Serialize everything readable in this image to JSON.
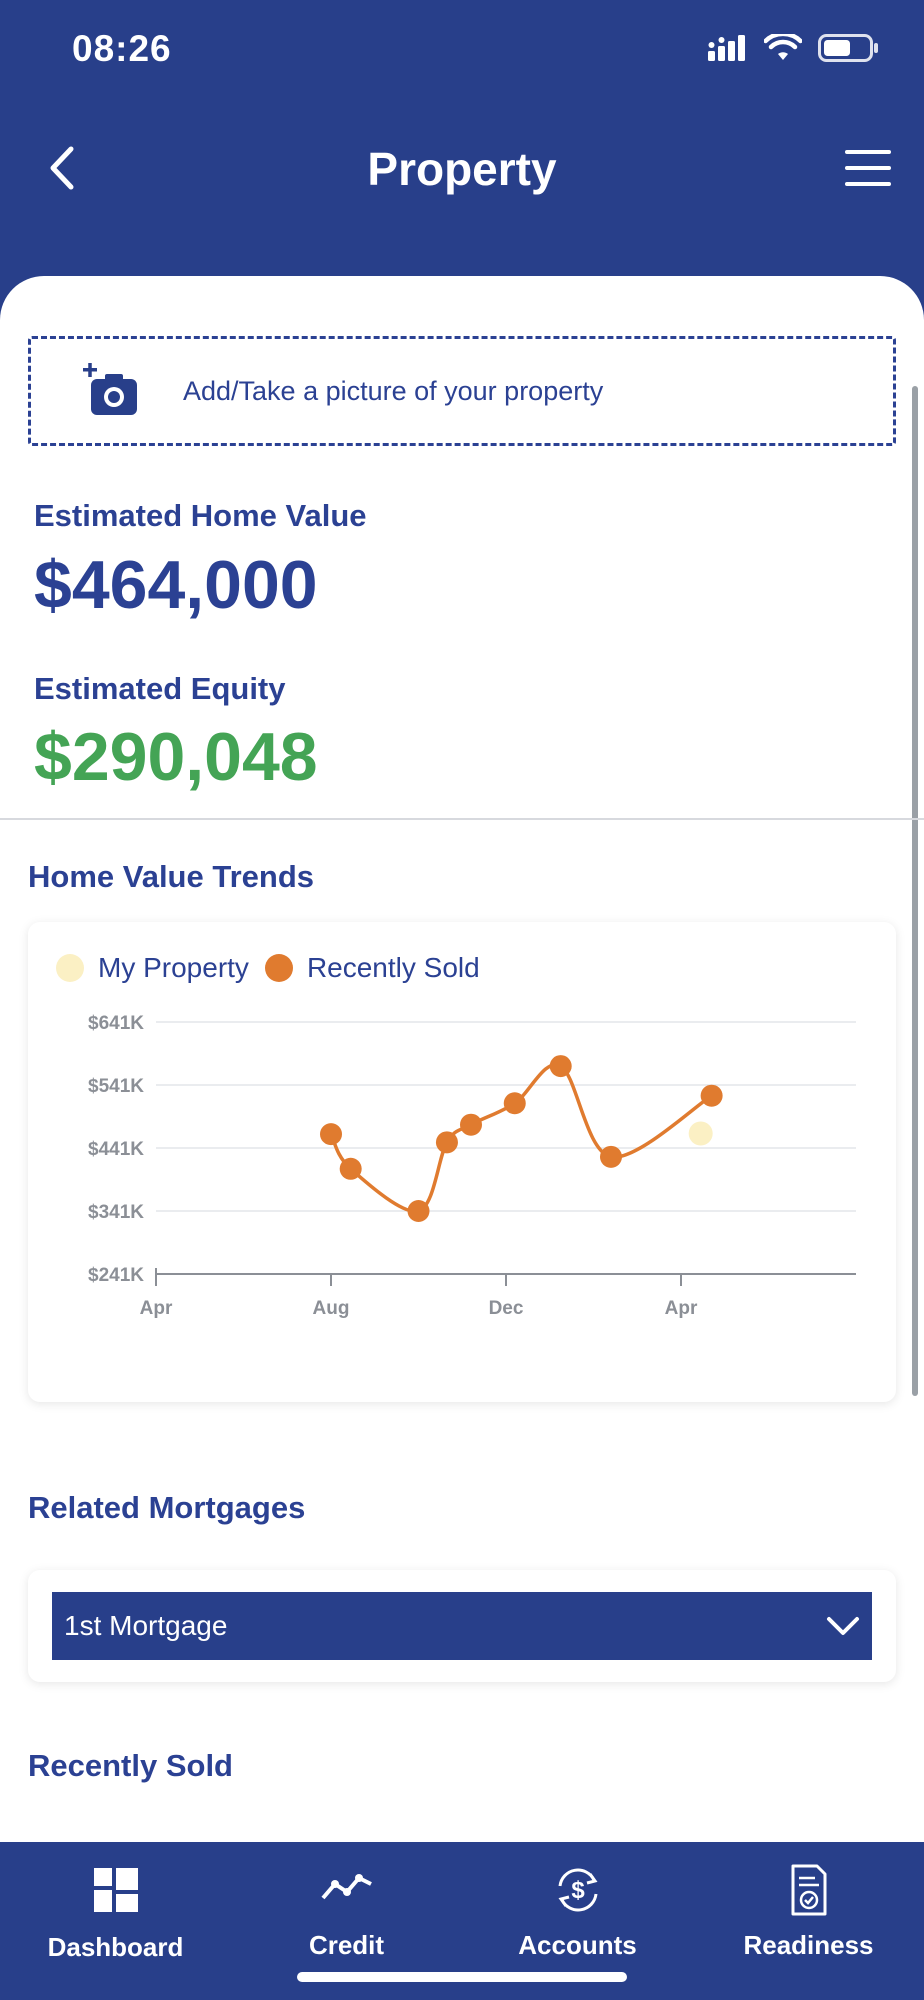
{
  "status_bar": {
    "time": "08:26"
  },
  "header": {
    "title": "Property"
  },
  "photo_upload": {
    "label": "Add/Take a picture of your property"
  },
  "home_value": {
    "label": "Estimated Home Value",
    "amount": "$464,000"
  },
  "equity": {
    "label": "Estimated Equity",
    "amount": "$290,048"
  },
  "trends": {
    "title": "Home Value Trends"
  },
  "colors": {
    "brand_blue": "#283f8a",
    "text_blue": "#2b4193",
    "equity_green": "#44a455",
    "recently_sold": "#e07b2f",
    "my_property": "#fbf0c4"
  },
  "chart_data": {
    "type": "line",
    "legend": [
      "My Property",
      "Recently Sold"
    ],
    "y_ticks": [
      "$241K",
      "$341K",
      "$441K",
      "$541K",
      "$641K"
    ],
    "y_tick_values": [
      241,
      341,
      441,
      541,
      641
    ],
    "x_ticks": [
      "Apr",
      "Aug",
      "Dec",
      "Apr"
    ],
    "x_tick_positions": [
      0,
      4,
      8,
      12
    ],
    "xlim": [
      0,
      16
    ],
    "ylim": [
      241,
      641
    ],
    "grid": true,
    "legend_position": "top-left",
    "series": [
      {
        "name": "Recently Sold",
        "x": [
          4.0,
          4.45,
          6.0,
          6.65,
          7.2,
          8.2,
          9.25,
          10.4,
          12.7
        ],
        "y": [
          463,
          408,
          341,
          450,
          478,
          512,
          571,
          427,
          524
        ]
      },
      {
        "name": "My Property",
        "x": [
          12.45
        ],
        "y": [
          464
        ]
      }
    ]
  },
  "mortgages": {
    "title": "Related Mortgages",
    "selected": "1st Mortgage"
  },
  "recently_sold": {
    "title": "Recently Sold"
  },
  "tabs": [
    {
      "label": "Dashboard",
      "icon": "dashboard-icon"
    },
    {
      "label": "Credit",
      "icon": "credit-trend-icon"
    },
    {
      "label": "Accounts",
      "icon": "accounts-dollar-icon"
    },
    {
      "label": "Readiness",
      "icon": "readiness-document-icon"
    }
  ]
}
